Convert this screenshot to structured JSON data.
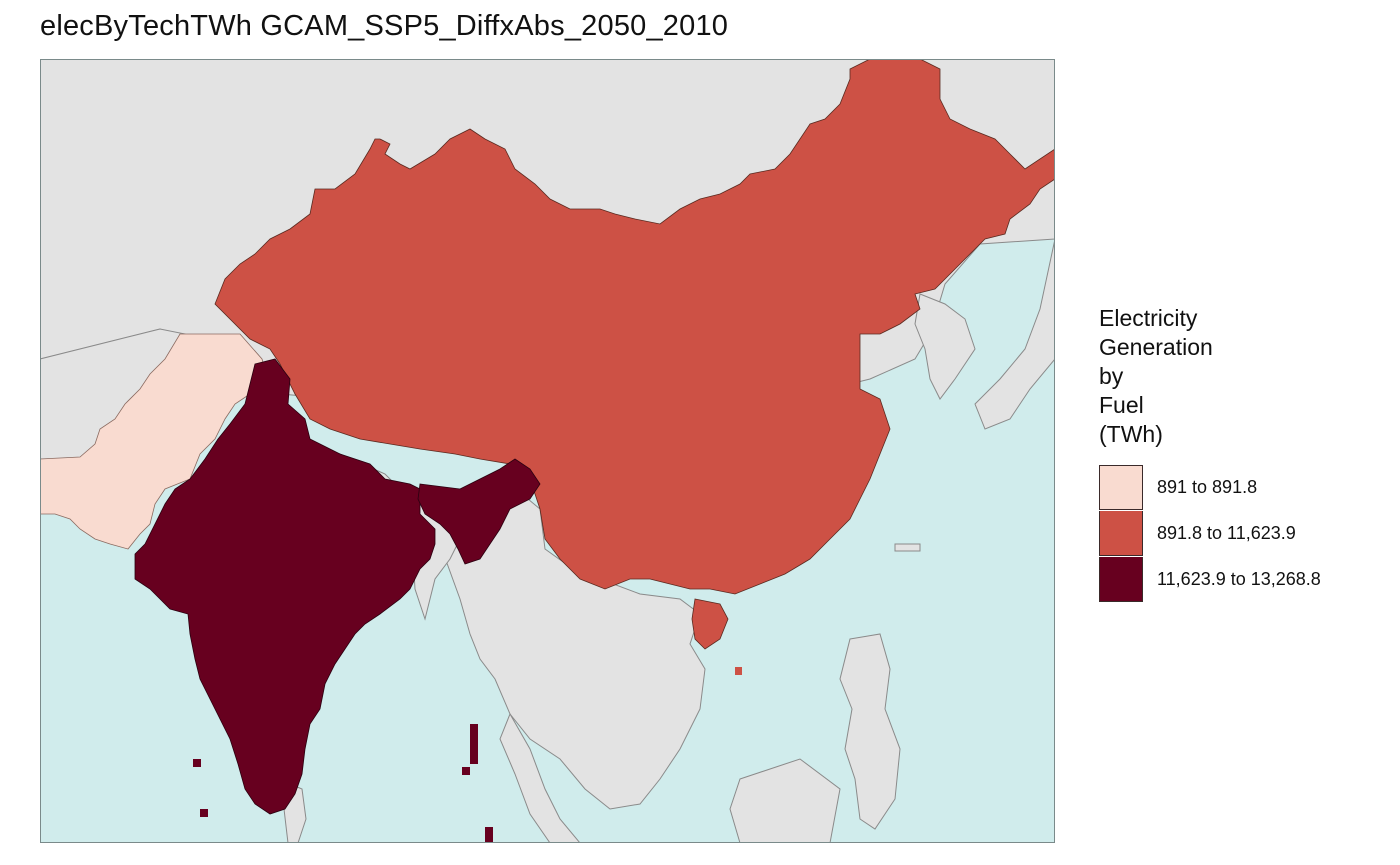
{
  "title": "elecByTechTWh GCAM_SSP5_DiffxAbs_2050_2010",
  "legend": {
    "title_lines": [
      "Electricity",
      "Generation",
      "by",
      "Fuel",
      "(TWh)"
    ],
    "items": [
      {
        "label": "891 to 891.8",
        "color": "#f9dbd0"
      },
      {
        "label": "891.8 to 11,623.9",
        "color": "#cd5145"
      },
      {
        "label": "11,623.9 to 13,268.8",
        "color": "#67001f"
      }
    ]
  },
  "map": {
    "ocean_color": "#d0ecec",
    "land_color": "#e3e3e3",
    "border_color": "#8a8a8a",
    "regions": [
      {
        "name": "Pakistan",
        "bin": 0
      },
      {
        "name": "China",
        "bin": 1
      },
      {
        "name": "Taiwan",
        "bin": 1
      },
      {
        "name": "India",
        "bin": 2
      }
    ]
  }
}
